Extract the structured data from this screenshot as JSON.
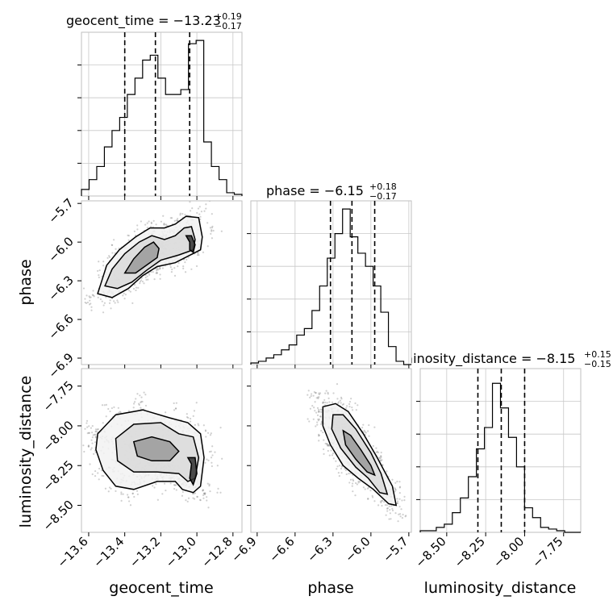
{
  "chart_data": {
    "type": "corner",
    "parameters": [
      "geocent_time",
      "phase",
      "luminosity_distance"
    ],
    "axis_labels": {
      "geocent_time": "geocent_time",
      "phase": "phase",
      "luminosity_distance": "luminosity_distance"
    },
    "titles": [
      {
        "param": "geocent_time",
        "prefix": "geocent_time = ",
        "median": "−13.23",
        "plus": "+0.19",
        "minus": "−0.17"
      },
      {
        "param": "phase",
        "prefix": "phase = ",
        "median": "−6.15",
        "plus": "+0.18",
        "minus": "−0.17"
      },
      {
        "param": "luminosity_distance",
        "prefix": "luminosity_distance = ",
        "median": "−8.15",
        "plus": "+0.15",
        "minus": "−0.15"
      }
    ],
    "ranges": {
      "geocent_time": [
        -13.64,
        -12.75
      ],
      "phase": [
        -6.95,
        -5.68
      ],
      "luminosity_distance": [
        -8.67,
        -7.64
      ]
    },
    "ticks": {
      "geocent_time": [
        -13.6,
        -13.4,
        -13.2,
        -13.0,
        -12.8
      ],
      "phase": [
        -6.9,
        -6.6,
        -6.3,
        -6.0,
        -5.7
      ],
      "luminosity_distance": [
        -8.5,
        -8.25,
        -8.0,
        -7.75
      ]
    },
    "tick_labels": {
      "geocent_time": [
        "−13.6",
        "−13.4",
        "−13.2",
        "−13.0",
        "−12.8"
      ],
      "phase": [
        "−6.9",
        "−6.6",
        "−6.3",
        "−6.0",
        "−5.7"
      ],
      "luminosity_distance_x": [
        "−8.50",
        "−8.25",
        "−8.00",
        "−7.75"
      ],
      "luminosity_distance_y": [
        "−7.75",
        "−8.00",
        "−8.25",
        "−8.50"
      ]
    },
    "quantiles": {
      "geocent_time": [
        -13.4,
        -13.23,
        -13.04
      ],
      "phase": [
        -6.32,
        -6.15,
        -5.97
      ],
      "luminosity_distance": [
        -8.3,
        -8.15,
        -8.0
      ]
    },
    "histograms": {
      "geocent_time": [
        0.04,
        0.1,
        0.18,
        0.3,
        0.4,
        0.48,
        0.62,
        0.72,
        0.83,
        0.86,
        0.72,
        0.62,
        0.62,
        0.65,
        0.93,
        0.95,
        0.33,
        0.18,
        0.1,
        0.02,
        0.01
      ],
      "phase": [
        0.01,
        0.02,
        0.04,
        0.06,
        0.09,
        0.12,
        0.18,
        0.22,
        0.33,
        0.48,
        0.65,
        0.8,
        0.95,
        0.78,
        0.68,
        0.6,
        0.48,
        0.32,
        0.11,
        0.02,
        0.0
      ],
      "luminosity_distance": [
        0.01,
        0.01,
        0.03,
        0.05,
        0.12,
        0.21,
        0.34,
        0.51,
        0.64,
        0.91,
        0.76,
        0.58,
        0.4,
        0.15,
        0.09,
        0.03,
        0.02,
        0.01,
        0.0,
        0.0
      ]
    },
    "contours": {
      "phase_vs_geocent_time": [
        [
          [
            -13.55,
            -6.4
          ],
          [
            -13.5,
            -6.18
          ],
          [
            -13.43,
            -6.06
          ],
          [
            -13.34,
            -5.96
          ],
          [
            -13.26,
            -5.89
          ],
          [
            -13.18,
            -5.89
          ],
          [
            -13.12,
            -5.86
          ],
          [
            -13.06,
            -5.8
          ],
          [
            -12.99,
            -5.81
          ],
          [
            -12.97,
            -5.96
          ],
          [
            -12.98,
            -6.06
          ],
          [
            -13.05,
            -6.11
          ],
          [
            -13.12,
            -6.16
          ],
          [
            -13.22,
            -6.19
          ],
          [
            -13.3,
            -6.26
          ],
          [
            -13.38,
            -6.36
          ],
          [
            -13.47,
            -6.43
          ],
          [
            -13.55,
            -6.4
          ]
        ],
        [
          [
            -13.51,
            -6.34
          ],
          [
            -13.47,
            -6.21
          ],
          [
            -13.4,
            -6.09
          ],
          [
            -13.32,
            -6.0
          ],
          [
            -13.25,
            -5.95
          ],
          [
            -13.18,
            -5.98
          ],
          [
            -13.12,
            -5.95
          ],
          [
            -13.07,
            -5.89
          ],
          [
            -13.03,
            -5.88
          ],
          [
            -13.01,
            -5.98
          ],
          [
            -13.02,
            -6.06
          ],
          [
            -13.1,
            -6.1
          ],
          [
            -13.2,
            -6.14
          ],
          [
            -13.28,
            -6.22
          ],
          [
            -13.36,
            -6.31
          ],
          [
            -13.44,
            -6.36
          ],
          [
            -13.51,
            -6.34
          ]
        ],
        [
          [
            -13.4,
            -6.24
          ],
          [
            -13.35,
            -6.13
          ],
          [
            -13.29,
            -6.04
          ],
          [
            -13.24,
            -6.0
          ],
          [
            -13.21,
            -6.05
          ],
          [
            -13.22,
            -6.12
          ],
          [
            -13.28,
            -6.18
          ],
          [
            -13.34,
            -6.24
          ],
          [
            -13.4,
            -6.24
          ]
        ],
        [
          [
            -13.06,
            -5.95
          ],
          [
            -13.04,
            -6.0
          ],
          [
            -13.04,
            -6.06
          ],
          [
            -13.02,
            -6.08
          ],
          [
            -13.01,
            -6.02
          ],
          [
            -13.03,
            -5.95
          ],
          [
            -13.06,
            -5.95
          ]
        ]
      ],
      "luminosity_distance_vs_geocent_time": [
        [
          [
            -13.55,
            -8.05
          ],
          [
            -13.45,
            -7.93
          ],
          [
            -13.3,
            -7.9
          ],
          [
            -13.15,
            -7.95
          ],
          [
            -13.05,
            -7.98
          ],
          [
            -12.98,
            -8.05
          ],
          [
            -12.96,
            -8.2
          ],
          [
            -12.98,
            -8.38
          ],
          [
            -13.02,
            -8.42
          ],
          [
            -13.08,
            -8.4
          ],
          [
            -13.12,
            -8.35
          ],
          [
            -13.22,
            -8.35
          ],
          [
            -13.35,
            -8.4
          ],
          [
            -13.45,
            -8.38
          ],
          [
            -13.52,
            -8.28
          ],
          [
            -13.56,
            -8.15
          ],
          [
            -13.55,
            -8.05
          ]
        ],
        [
          [
            -13.45,
            -8.08
          ],
          [
            -13.35,
            -7.99
          ],
          [
            -13.2,
            -7.98
          ],
          [
            -13.1,
            -8.05
          ],
          [
            -13.02,
            -8.07
          ],
          [
            -12.99,
            -8.2
          ],
          [
            -13.01,
            -8.33
          ],
          [
            -13.05,
            -8.35
          ],
          [
            -13.1,
            -8.3
          ],
          [
            -13.22,
            -8.29
          ],
          [
            -13.35,
            -8.29
          ],
          [
            -13.44,
            -8.22
          ],
          [
            -13.45,
            -8.08
          ]
        ],
        [
          [
            -13.35,
            -8.1
          ],
          [
            -13.25,
            -8.07
          ],
          [
            -13.15,
            -8.1
          ],
          [
            -13.1,
            -8.16
          ],
          [
            -13.15,
            -8.22
          ],
          [
            -13.25,
            -8.22
          ],
          [
            -13.33,
            -8.19
          ],
          [
            -13.35,
            -8.1
          ]
        ],
        [
          [
            -13.05,
            -8.2
          ],
          [
            -13.03,
            -8.24
          ],
          [
            -13.04,
            -8.33
          ],
          [
            -13.02,
            -8.37
          ],
          [
            -13.0,
            -8.3
          ],
          [
            -13.01,
            -8.2
          ],
          [
            -13.05,
            -8.2
          ]
        ]
      ],
      "luminosity_distance_vs_phase": [
        [
          [
            -6.38,
            -7.88
          ],
          [
            -6.28,
            -7.86
          ],
          [
            -6.18,
            -7.91
          ],
          [
            -6.06,
            -8.05
          ],
          [
            -5.95,
            -8.2
          ],
          [
            -5.83,
            -8.38
          ],
          [
            -5.8,
            -8.5
          ],
          [
            -5.86,
            -8.49
          ],
          [
            -5.98,
            -8.4
          ],
          [
            -6.1,
            -8.33
          ],
          [
            -6.22,
            -8.25
          ],
          [
            -6.32,
            -8.12
          ],
          [
            -6.38,
            -8.0
          ],
          [
            -6.38,
            -7.88
          ]
        ],
        [
          [
            -6.3,
            -7.93
          ],
          [
            -6.22,
            -7.93
          ],
          [
            -6.12,
            -8.02
          ],
          [
            -6.0,
            -8.17
          ],
          [
            -5.92,
            -8.3
          ],
          [
            -5.87,
            -8.43
          ],
          [
            -5.93,
            -8.42
          ],
          [
            -6.02,
            -8.33
          ],
          [
            -6.12,
            -8.26
          ],
          [
            -6.24,
            -8.14
          ],
          [
            -6.31,
            -8.02
          ],
          [
            -6.3,
            -7.93
          ]
        ],
        [
          [
            -6.22,
            -8.03
          ],
          [
            -6.16,
            -8.06
          ],
          [
            -6.08,
            -8.15
          ],
          [
            -6.0,
            -8.25
          ],
          [
            -5.97,
            -8.31
          ],
          [
            -6.03,
            -8.29
          ],
          [
            -6.12,
            -8.21
          ],
          [
            -6.2,
            -8.12
          ],
          [
            -6.22,
            -8.03
          ]
        ]
      ]
    },
    "grid": true
  }
}
